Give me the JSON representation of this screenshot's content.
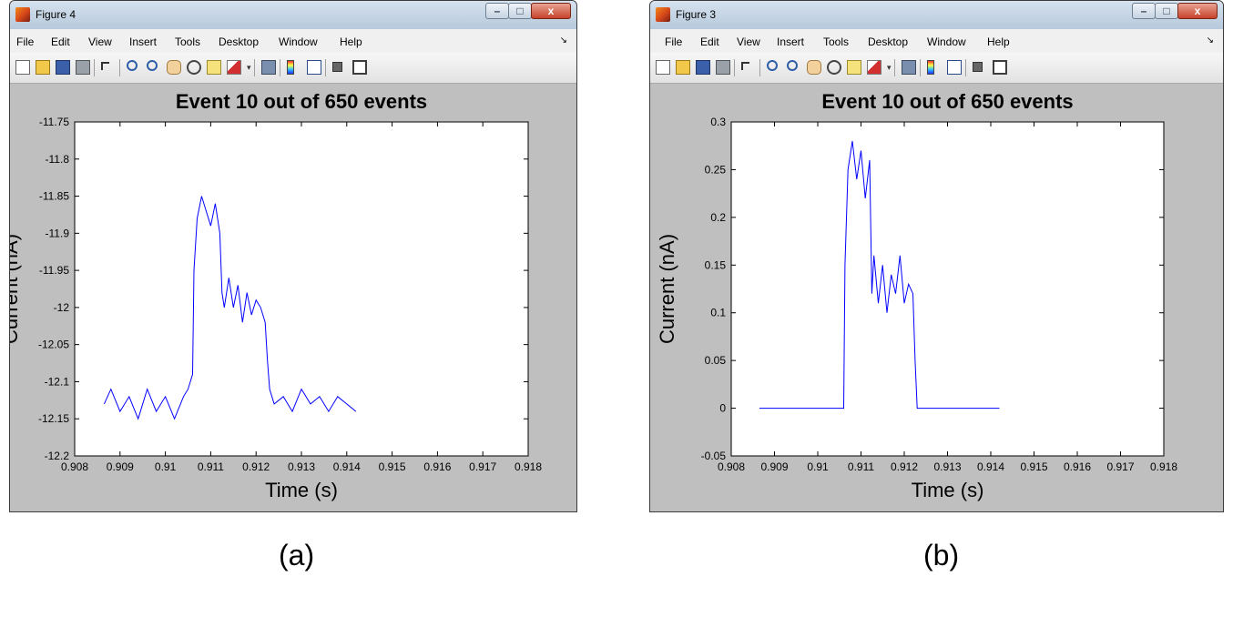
{
  "windows": [
    {
      "id": "a",
      "title": "Figure 4",
      "menu": [
        "File",
        "Edit",
        "View",
        "Insert",
        "Tools",
        "Desktop",
        "Window",
        "Help"
      ],
      "caption": "(a)"
    },
    {
      "id": "b",
      "title": "Figure 3",
      "menu": [
        "File",
        "Edit",
        "View",
        "Insert",
        "Tools",
        "Desktop",
        "Window",
        "Help"
      ],
      "caption": "(b)"
    }
  ],
  "toolbar_icons": [
    "new-figure-icon",
    "open-file-icon",
    "save-icon",
    "print-icon",
    "edit-plot-arrow-icon",
    "zoom-in-icon",
    "zoom-out-icon",
    "pan-hand-icon",
    "rotate-3d-icon",
    "data-cursor-icon",
    "brush-icon",
    "brush-dropdown-icon",
    "link-plot-icon",
    "colorbar-icon",
    "legend-icon",
    "hide-plot-tools-icon",
    "show-plot-tools-icon"
  ],
  "colors": {
    "line": "#0000ff",
    "figure_bg": "#bfbfbf",
    "axes_bg": "#ffffff",
    "titlebar": "#c9d8e8"
  },
  "chart_data": [
    {
      "type": "line",
      "title": "Event 10 out of 650 events",
      "xlabel": "Time (s)",
      "ylabel": "Current (nA)",
      "xlim": [
        0.908,
        0.918
      ],
      "ylim": [
        -12.2,
        -11.75
      ],
      "xticks": [
        "0.908",
        "0.909",
        "0.91",
        "0.911",
        "0.912",
        "0.913",
        "0.914",
        "0.915",
        "0.916",
        "0.917",
        "0.918"
      ],
      "yticks": [
        "-11.75",
        "-11.8",
        "-11.85",
        "-11.9",
        "-11.95",
        "-12",
        "-12.05",
        "-12.1",
        "-12.15",
        "-12.2"
      ],
      "grid": false,
      "series": [
        {
          "color": "#0000ff",
          "x": [
            0.90865,
            0.9088,
            0.909,
            0.9092,
            0.9094,
            0.9096,
            0.9098,
            0.91,
            0.9102,
            0.9104,
            0.9105,
            0.9106,
            0.91063,
            0.9107,
            0.9108,
            0.9109,
            0.911,
            0.9111,
            0.9112,
            0.91125,
            0.9113,
            0.9114,
            0.9115,
            0.9116,
            0.9117,
            0.9118,
            0.9119,
            0.912,
            0.9121,
            0.9122,
            0.91225,
            0.9123,
            0.9124,
            0.9126,
            0.9128,
            0.913,
            0.9132,
            0.9134,
            0.9136,
            0.9138,
            0.914,
            0.9142
          ],
          "y": [
            -12.13,
            -12.11,
            -12.14,
            -12.12,
            -12.15,
            -12.11,
            -12.14,
            -12.12,
            -12.15,
            -12.12,
            -12.11,
            -12.09,
            -11.95,
            -11.88,
            -11.85,
            -11.87,
            -11.89,
            -11.86,
            -11.9,
            -11.98,
            -12.0,
            -11.96,
            -12.0,
            -11.97,
            -12.02,
            -11.98,
            -12.01,
            -11.99,
            -12.0,
            -12.02,
            -12.07,
            -12.11,
            -12.13,
            -12.12,
            -12.14,
            -12.11,
            -12.13,
            -12.12,
            -12.14,
            -12.12,
            -12.13,
            -12.14
          ]
        }
      ]
    },
    {
      "type": "line",
      "title": "Event 10 out of 650 events",
      "xlabel": "Time (s)",
      "ylabel": "Current (nA)",
      "xlim": [
        0.908,
        0.918
      ],
      "ylim": [
        -0.05,
        0.3
      ],
      "xticks": [
        "0.908",
        "0.909",
        "0.91",
        "0.911",
        "0.912",
        "0.913",
        "0.914",
        "0.915",
        "0.916",
        "0.917",
        "0.918"
      ],
      "yticks": [
        "0.3",
        "0.25",
        "0.2",
        "0.15",
        "0.1",
        "0.05",
        "0",
        "-0.05"
      ],
      "grid": false,
      "series": [
        {
          "color": "#0000ff",
          "x": [
            0.90865,
            0.9106,
            0.91063,
            0.9107,
            0.9108,
            0.9109,
            0.911,
            0.9111,
            0.9112,
            0.91125,
            0.9113,
            0.9114,
            0.9115,
            0.9116,
            0.9117,
            0.9118,
            0.9119,
            0.912,
            0.9121,
            0.9122,
            0.91225,
            0.9123,
            0.9126,
            0.913,
            0.9134,
            0.9138,
            0.9142
          ],
          "y": [
            0,
            0,
            0.15,
            0.25,
            0.28,
            0.24,
            0.27,
            0.22,
            0.26,
            0.12,
            0.16,
            0.11,
            0.15,
            0.1,
            0.14,
            0.12,
            0.16,
            0.11,
            0.13,
            0.12,
            0.05,
            0,
            0,
            0,
            0,
            0,
            0
          ]
        }
      ]
    }
  ]
}
